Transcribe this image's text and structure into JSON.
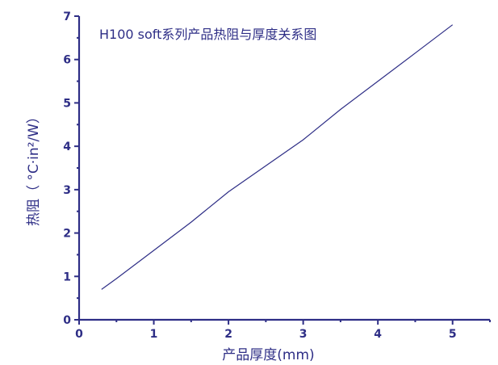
{
  "chart_data": {
    "type": "line",
    "title": "H100 soft系列产品热阻与厚度关系图",
    "xlabel": "产品厚度(mm)",
    "ylabel": "热阻（ °C·in²/W）",
    "xlim": [
      0,
      5.5
    ],
    "ylim": [
      0,
      7
    ],
    "xticks": [
      0,
      1,
      2,
      3,
      4,
      5
    ],
    "yticks": [
      0,
      1,
      2,
      3,
      4,
      5,
      6,
      7
    ],
    "grid": false,
    "legend": "none",
    "series": [
      {
        "x": [
          0.3,
          0.5,
          1.0,
          1.5,
          2.0,
          2.5,
          3.0,
          3.5,
          4.0,
          4.5,
          5.0
        ],
        "values": [
          0.7,
          0.95,
          1.6,
          2.25,
          2.95,
          3.55,
          4.15,
          4.85,
          5.5,
          6.15,
          6.8
        ]
      }
    ],
    "colors": {
      "axis": "#2e2e86",
      "series": "#2e2e86"
    }
  }
}
